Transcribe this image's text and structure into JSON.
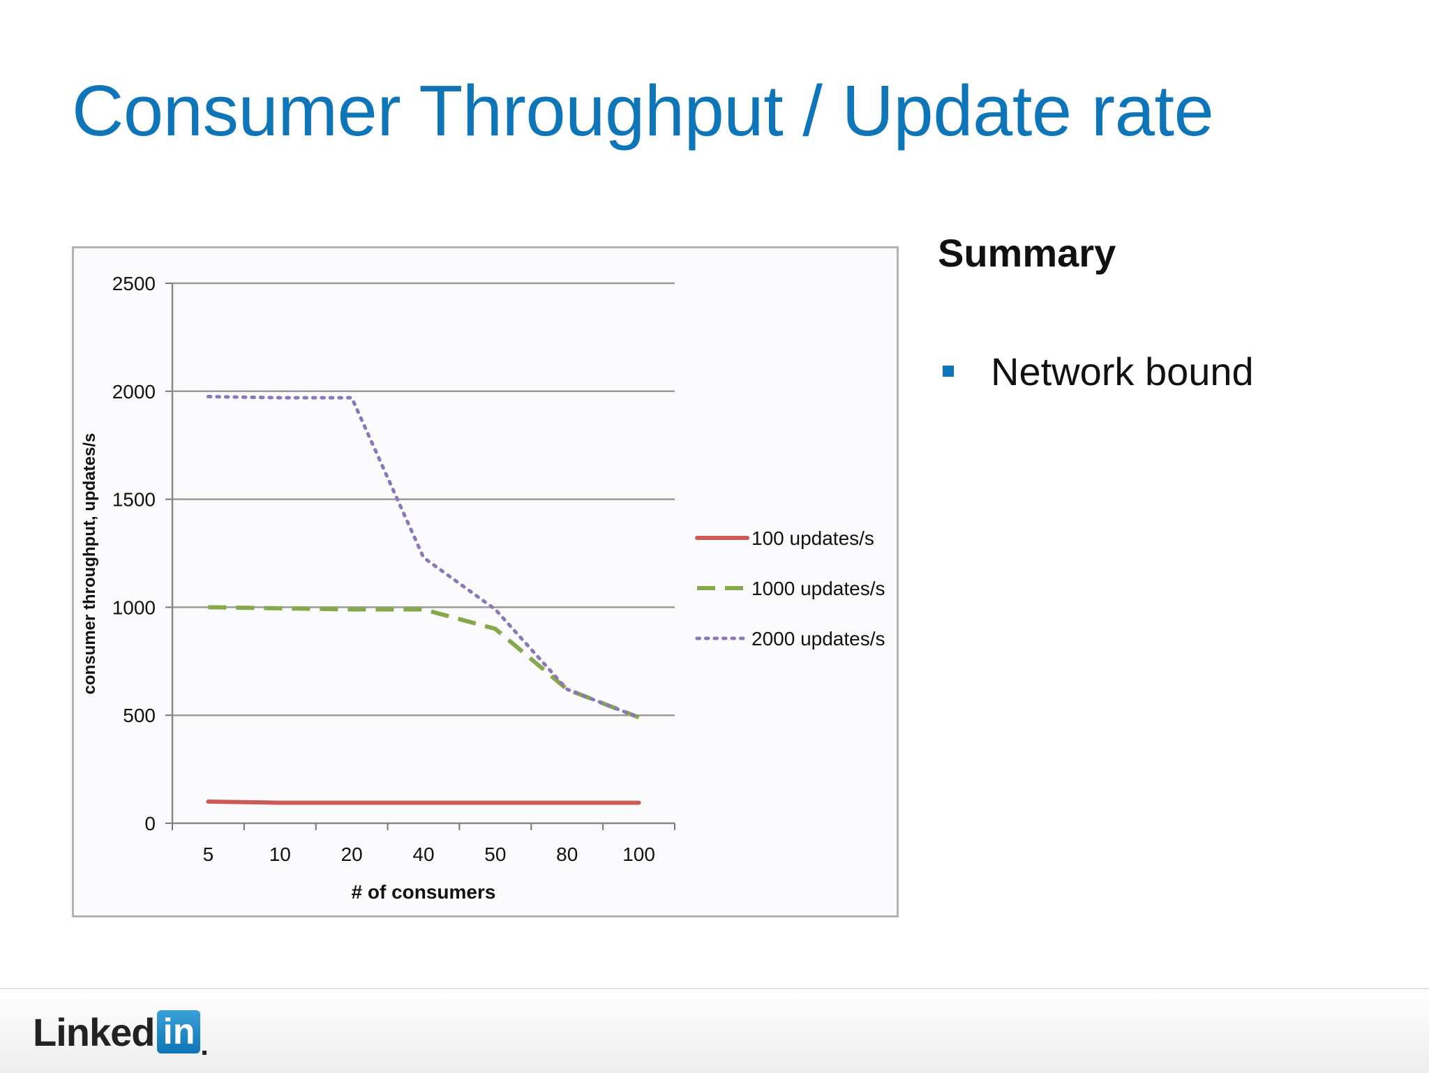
{
  "slide": {
    "title": "Consumer Throughput / Update rate",
    "summary_title": "Summary",
    "bullets": [
      "Network bound"
    ],
    "accent_color": "#0e76b8"
  },
  "footer": {
    "logo_word": "Linked",
    "logo_box": "in"
  },
  "chart_data": {
    "type": "line",
    "categories": [
      "5",
      "10",
      "20",
      "40",
      "50",
      "80",
      "100"
    ],
    "xlabel": "# of consumers",
    "ylabel": "consumer throughput,  updates/s",
    "ylim": [
      0,
      2500
    ],
    "yticks": [
      0,
      500,
      1000,
      1500,
      2000,
      2500
    ],
    "grid": true,
    "legend_position": "right",
    "series": [
      {
        "name": "100 updates/s",
        "values": [
          100,
          95,
          95,
          95,
          95,
          95,
          95
        ],
        "color": "#cc5a55",
        "style": "solid"
      },
      {
        "name": "1000 updates/s",
        "values": [
          1000,
          995,
          990,
          990,
          900,
          620,
          490
        ],
        "color": "#85a84a",
        "style": "dashed"
      },
      {
        "name": "2000 updates/s",
        "values": [
          1975,
          1970,
          1970,
          1230,
          990,
          620,
          490
        ],
        "color": "#8c78b8",
        "style": "dotted"
      }
    ]
  }
}
